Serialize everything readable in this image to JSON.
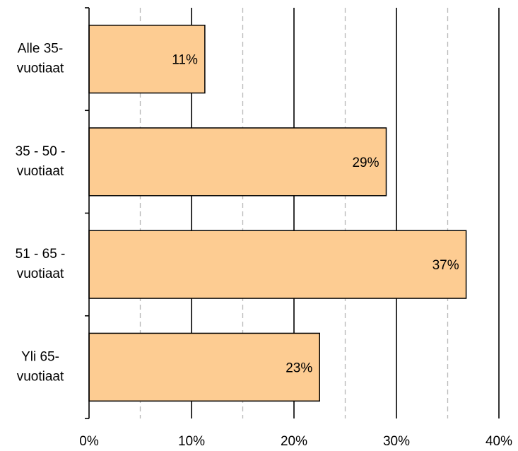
{
  "chart_data": {
    "type": "bar",
    "orientation": "horizontal",
    "categories": [
      [
        "Alle 35-",
        "vuotiaat"
      ],
      [
        "35 - 50 -",
        "vuotiaat"
      ],
      [
        "51 - 65 -",
        "vuotiaat"
      ],
      [
        "Yli 65-",
        "vuotiaat"
      ]
    ],
    "values": [
      11.3,
      29.0,
      36.8,
      22.5
    ],
    "data_labels": [
      "11%",
      "29%",
      "37%",
      "23%"
    ],
    "xlim": [
      0,
      40
    ],
    "x_ticks": [
      0,
      10,
      20,
      30,
      40
    ],
    "x_tick_labels": [
      "0%",
      "10%",
      "20%",
      "30%",
      "40%"
    ],
    "minor_gridlines": [
      5,
      15,
      25,
      35
    ],
    "grid": true,
    "legend": "none",
    "colors": {
      "bar_fill": "#fdcc92",
      "bar_stroke": "#000000",
      "major_grid": "#000000",
      "minor_grid": "#b8b8b8"
    }
  }
}
